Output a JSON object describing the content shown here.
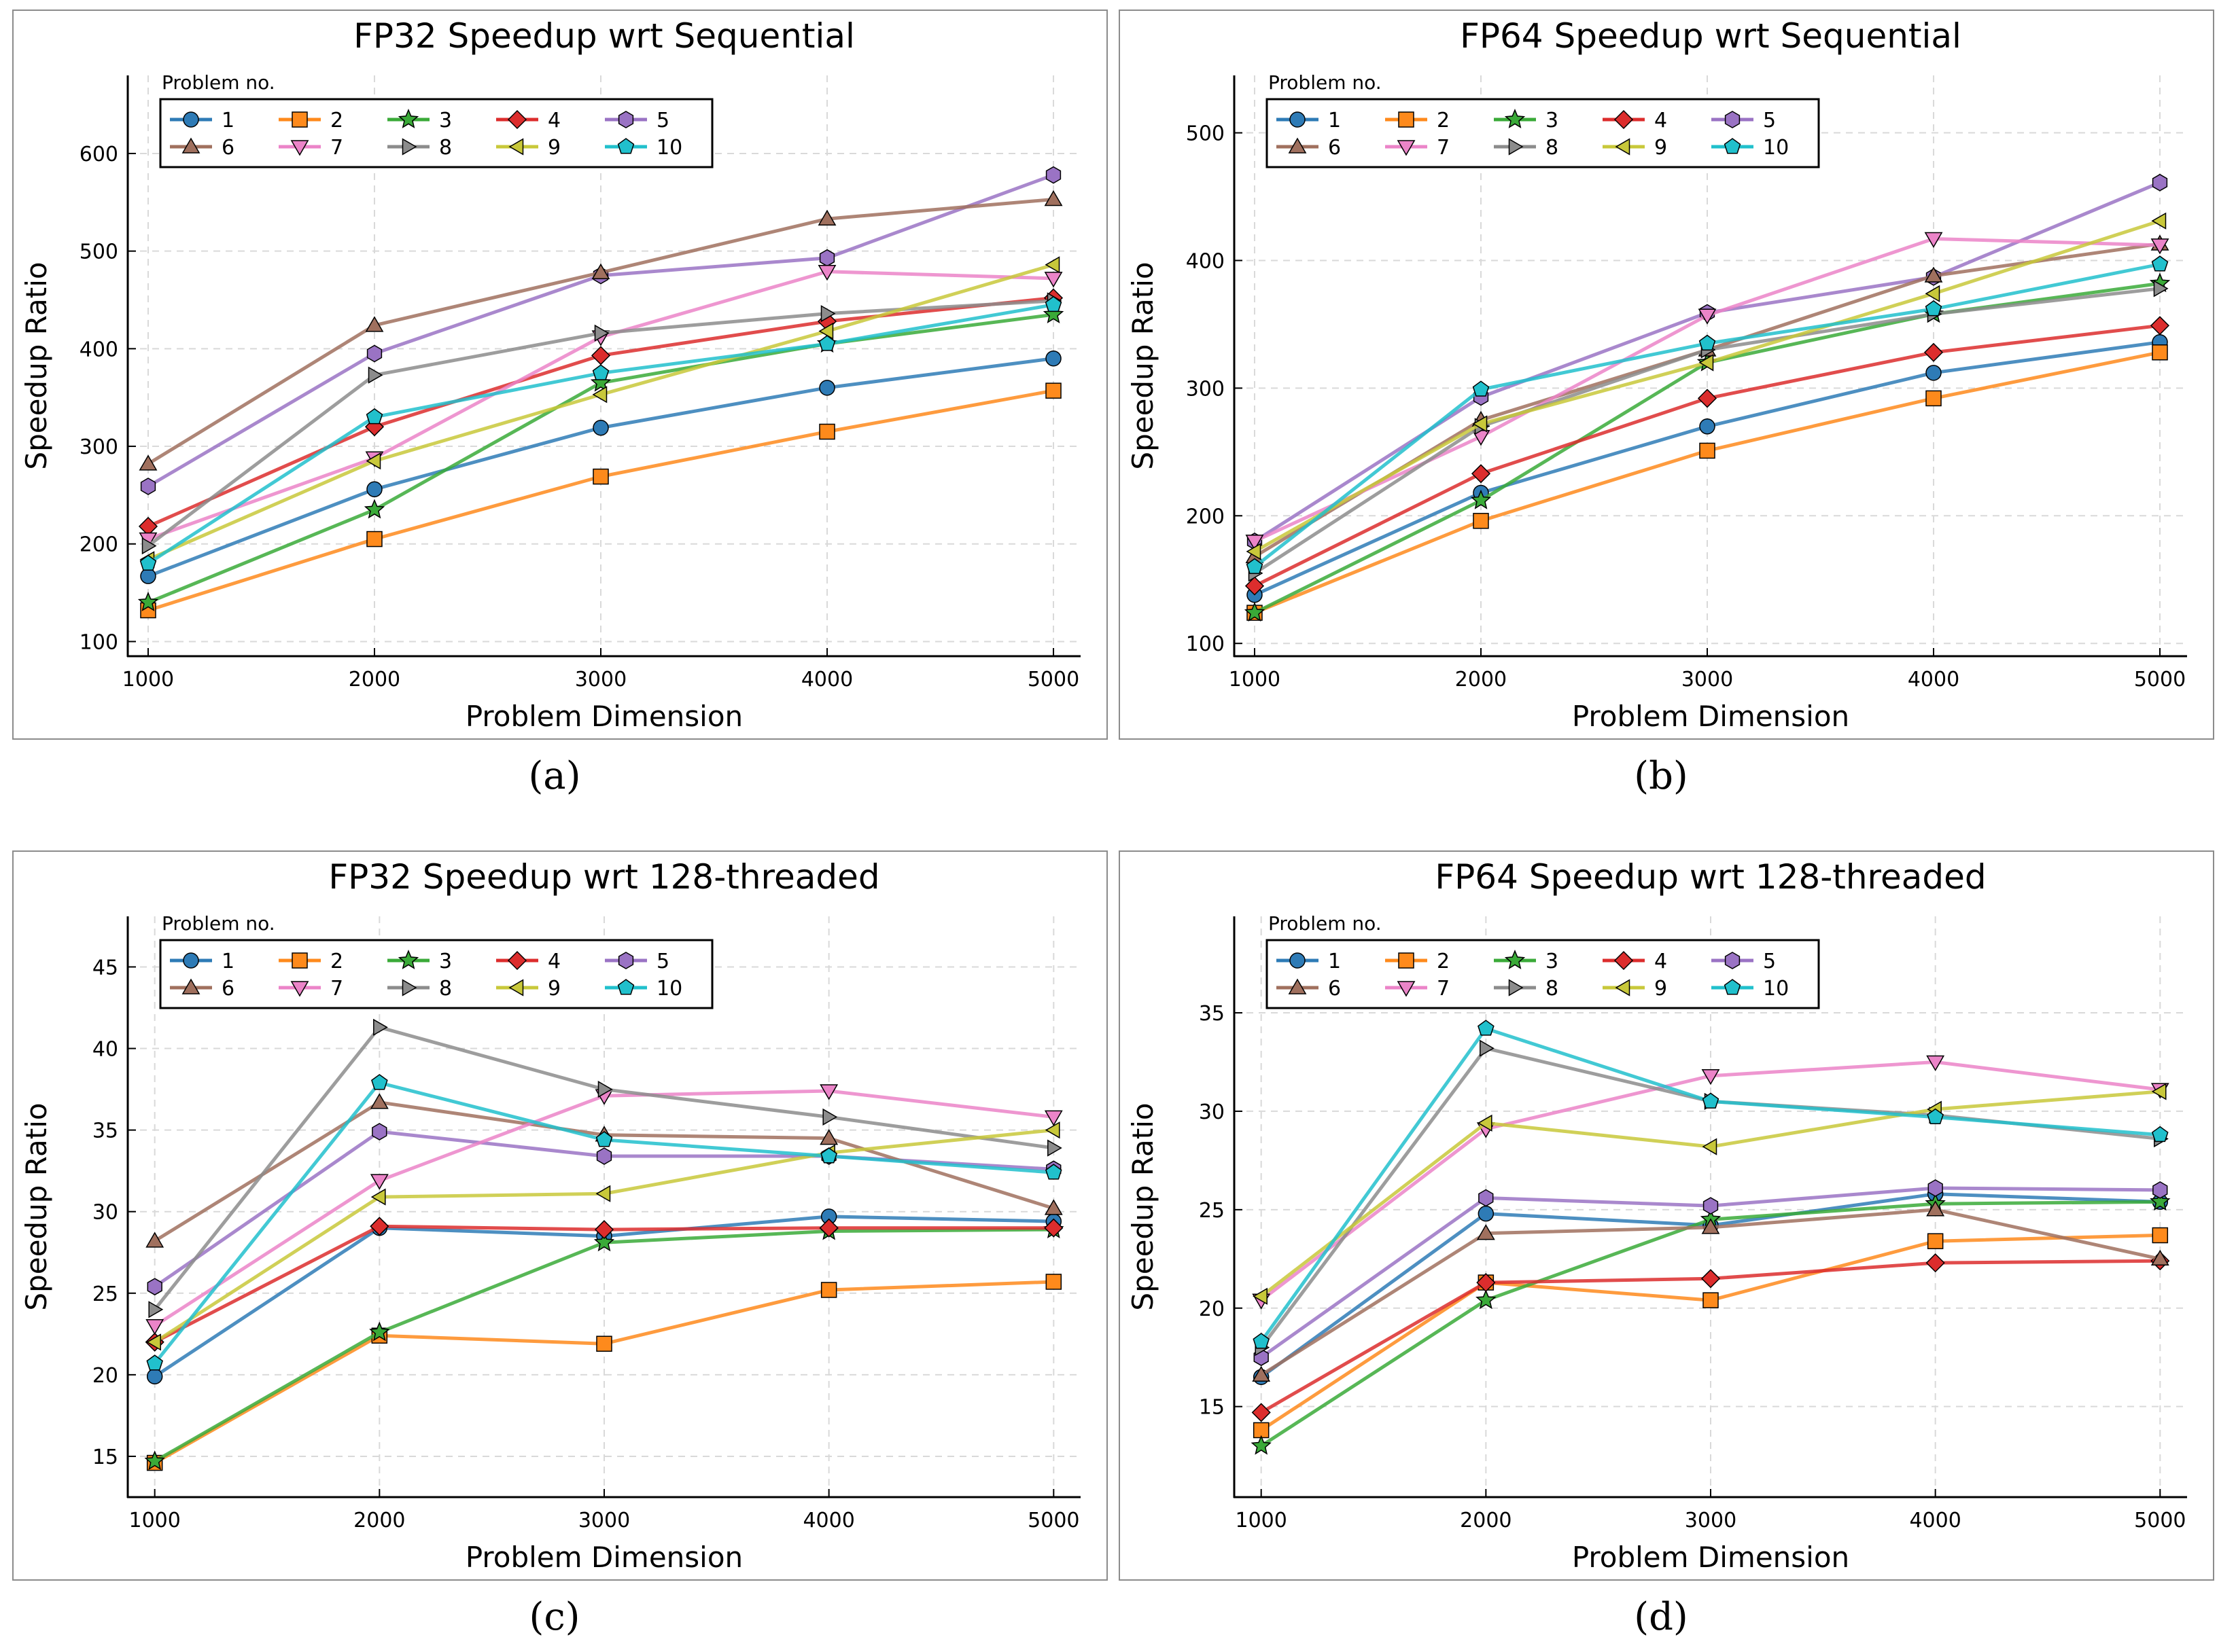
{
  "colors": {
    "s1": "#2e7bb6",
    "s2": "#fe8a1c",
    "s3": "#3aaa38",
    "s4": "#dc2d2d",
    "s5": "#9a73c4",
    "s6": "#a0705e",
    "s7": "#eb84c8",
    "s8": "#8c8c8c",
    "s9": "#c8c83a",
    "s10": "#21c0cc"
  },
  "captions": [
    "(a)",
    "(b)",
    "(c)",
    "(d)"
  ],
  "chart_data": [
    {
      "type": "line",
      "title": "FP32 Speedup wrt Sequential",
      "xlabel": "Problem Dimension",
      "ylabel": "Speedup Ratio",
      "x": [
        1000,
        2000,
        3000,
        4000,
        5000
      ],
      "xticks": [
        "1000",
        "2000",
        "3000",
        "4000",
        "5000"
      ],
      "yticks": [
        "100",
        "200",
        "300",
        "400",
        "500",
        "600"
      ],
      "xlim": [
        910,
        5120
      ],
      "ylim": [
        85,
        680
      ],
      "legend_title": "Problem no.",
      "legend_position": "top-left",
      "grid": true,
      "series": [
        {
          "name": "1",
          "marker": "circle",
          "values": [
            167,
            256,
            319,
            360,
            390
          ]
        },
        {
          "name": "2",
          "marker": "square",
          "values": [
            132,
            205,
            269,
            315,
            357
          ]
        },
        {
          "name": "3",
          "marker": "star",
          "values": [
            140,
            235,
            365,
            405,
            435
          ]
        },
        {
          "name": "4",
          "marker": "diamond",
          "values": [
            218,
            320,
            393,
            428,
            452
          ]
        },
        {
          "name": "5",
          "marker": "hexagon",
          "values": [
            259,
            395,
            475,
            493,
            578
          ]
        },
        {
          "name": "6",
          "marker": "triangle-up",
          "values": [
            282,
            424,
            478,
            533,
            553
          ]
        },
        {
          "name": "7",
          "marker": "triangle-down",
          "values": [
            205,
            288,
            412,
            479,
            472
          ]
        },
        {
          "name": "8",
          "marker": "triangle-right",
          "values": [
            198,
            373,
            416,
            436,
            449
          ]
        },
        {
          "name": "9",
          "marker": "triangle-left",
          "values": [
            184,
            285,
            353,
            418,
            486
          ]
        },
        {
          "name": "10",
          "marker": "pentagon",
          "values": [
            180,
            330,
            375,
            405,
            445
          ]
        }
      ]
    },
    {
      "type": "line",
      "title": "FP64 Speedup wrt Sequential",
      "xlabel": "Problem Dimension",
      "ylabel": "Speedup Ratio",
      "x": [
        1000,
        2000,
        3000,
        4000,
        5000
      ],
      "xticks": [
        "1000",
        "2000",
        "3000",
        "4000",
        "5000"
      ],
      "yticks": [
        "100",
        "200",
        "300",
        "400",
        "500"
      ],
      "xlim": [
        910,
        5120
      ],
      "ylim": [
        90,
        545
      ],
      "legend_title": "Problem no.",
      "legend_position": "top-left",
      "grid": true,
      "series": [
        {
          "name": "1",
          "marker": "circle",
          "values": [
            138,
            218,
            270,
            312,
            336
          ]
        },
        {
          "name": "2",
          "marker": "square",
          "values": [
            124,
            196,
            251,
            292,
            328
          ]
        },
        {
          "name": "3",
          "marker": "star",
          "values": [
            124,
            212,
            320,
            358,
            382
          ]
        },
        {
          "name": "4",
          "marker": "diamond",
          "values": [
            145,
            233,
            292,
            328,
            349
          ]
        },
        {
          "name": "5",
          "marker": "hexagon",
          "values": [
            180,
            293,
            359,
            387,
            461
          ]
        },
        {
          "name": "6",
          "marker": "triangle-up",
          "values": [
            168,
            275,
            330,
            388,
            413
          ]
        },
        {
          "name": "7",
          "marker": "triangle-down",
          "values": [
            180,
            262,
            357,
            417,
            412
          ]
        },
        {
          "name": "8",
          "marker": "triangle-right",
          "values": [
            155,
            270,
            330,
            358,
            378
          ]
        },
        {
          "name": "9",
          "marker": "triangle-left",
          "values": [
            172,
            272,
            320,
            374,
            431
          ]
        },
        {
          "name": "10",
          "marker": "pentagon",
          "values": [
            160,
            299,
            335,
            362,
            397
          ]
        }
      ]
    },
    {
      "type": "line",
      "title": "FP32 Speedup wrt 128-threaded",
      "xlabel": "Problem Dimension",
      "ylabel": "Speedup Ratio",
      "x": [
        1000,
        2000,
        3000,
        4000,
        5000
      ],
      "xticks": [
        "1000",
        "2000",
        "3000",
        "4000",
        "5000"
      ],
      "yticks": [
        "15",
        "20",
        "25",
        "30",
        "35",
        "40",
        "45"
      ],
      "xlim": [
        880,
        5120
      ],
      "ylim": [
        12.5,
        48.1
      ],
      "legend_title": "Problem no.",
      "legend_position": "top-left",
      "grid": true,
      "series": [
        {
          "name": "1",
          "marker": "circle",
          "values": [
            19.9,
            29.0,
            28.5,
            29.7,
            29.4
          ]
        },
        {
          "name": "2",
          "marker": "square",
          "values": [
            14.6,
            22.4,
            21.9,
            25.2,
            25.7
          ]
        },
        {
          "name": "3",
          "marker": "star",
          "values": [
            14.7,
            22.6,
            28.1,
            28.8,
            28.9
          ]
        },
        {
          "name": "4",
          "marker": "diamond",
          "values": [
            22.0,
            29.1,
            28.9,
            29.0,
            29.0
          ]
        },
        {
          "name": "5",
          "marker": "hexagon",
          "values": [
            25.4,
            34.9,
            33.4,
            33.4,
            32.6
          ]
        },
        {
          "name": "6",
          "marker": "triangle-up",
          "values": [
            28.2,
            36.7,
            34.7,
            34.5,
            30.2
          ]
        },
        {
          "name": "7",
          "marker": "triangle-down",
          "values": [
            23.0,
            31.9,
            37.1,
            37.4,
            35.8
          ]
        },
        {
          "name": "8",
          "marker": "triangle-right",
          "values": [
            24.0,
            41.3,
            37.5,
            35.8,
            33.9
          ]
        },
        {
          "name": "9",
          "marker": "triangle-left",
          "values": [
            22.0,
            30.9,
            31.1,
            33.6,
            35.0
          ]
        },
        {
          "name": "10",
          "marker": "pentagon",
          "values": [
            20.7,
            37.9,
            34.4,
            33.4,
            32.4
          ]
        }
      ]
    },
    {
      "type": "line",
      "title": "FP64 Speedup wrt 128-threaded",
      "xlabel": "Problem Dimension",
      "ylabel": "Speedup Ratio",
      "x": [
        1000,
        2000,
        3000,
        4000,
        5000
      ],
      "xticks": [
        "1000",
        "2000",
        "3000",
        "4000",
        "5000"
      ],
      "yticks": [
        "15",
        "20",
        "25",
        "30",
        "35"
      ],
      "xlim": [
        880,
        5120
      ],
      "ylim": [
        10.4,
        39.9
      ],
      "legend_title": "Problem no.",
      "legend_position": "top-left",
      "grid": true,
      "series": [
        {
          "name": "1",
          "marker": "circle",
          "values": [
            16.5,
            24.8,
            24.2,
            25.8,
            25.4
          ]
        },
        {
          "name": "2",
          "marker": "square",
          "values": [
            13.8,
            21.3,
            20.4,
            23.4,
            23.7
          ]
        },
        {
          "name": "3",
          "marker": "star",
          "values": [
            13.0,
            20.4,
            24.5,
            25.3,
            25.4
          ]
        },
        {
          "name": "4",
          "marker": "diamond",
          "values": [
            14.7,
            21.3,
            21.5,
            22.3,
            22.4
          ]
        },
        {
          "name": "5",
          "marker": "hexagon",
          "values": [
            17.5,
            25.6,
            25.2,
            26.1,
            26.0
          ]
        },
        {
          "name": "6",
          "marker": "triangle-up",
          "values": [
            16.6,
            23.8,
            24.1,
            25.0,
            22.5
          ]
        },
        {
          "name": "7",
          "marker": "triangle-down",
          "values": [
            20.4,
            29.1,
            31.8,
            32.5,
            31.1
          ]
        },
        {
          "name": "8",
          "marker": "triangle-right",
          "values": [
            18.0,
            33.2,
            30.5,
            29.8,
            28.6
          ]
        },
        {
          "name": "9",
          "marker": "triangle-left",
          "values": [
            20.6,
            29.4,
            28.2,
            30.1,
            31.0
          ]
        },
        {
          "name": "10",
          "marker": "pentagon",
          "values": [
            18.3,
            34.2,
            30.5,
            29.7,
            28.8
          ]
        }
      ]
    }
  ]
}
